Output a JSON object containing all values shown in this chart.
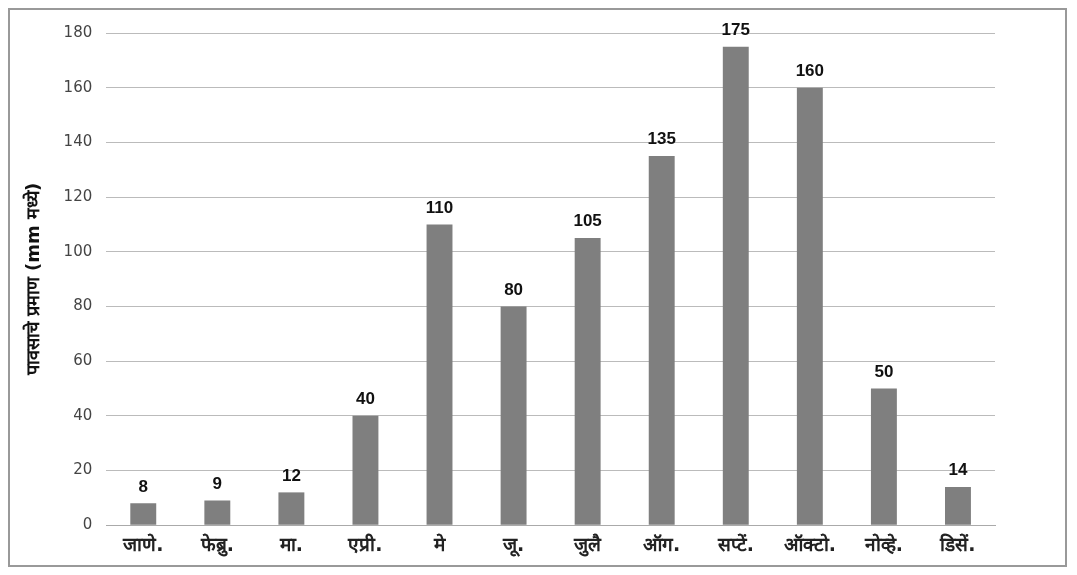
{
  "chart_data": {
    "type": "bar",
    "ylabel": "पावसाचे प्रमाण (mm मध्ये)",
    "categories": [
      "जाणे.",
      "फेब्रु.",
      "मा.",
      "एप्री.",
      "मे",
      "जू.",
      "जुलै",
      "ऑग.",
      "सप्टें.",
      "ऑक्टो.",
      "नोव्हे.",
      "डिसें."
    ],
    "values": [
      8,
      9,
      12,
      40,
      110,
      80,
      105,
      135,
      175,
      160,
      50,
      14
    ],
    "color": "#7f7f7f",
    "ylim": [
      0,
      180
    ],
    "yticks": [
      0,
      20,
      40,
      60,
      80,
      100,
      120,
      140,
      160,
      180
    ],
    "grid": "y",
    "data_labels": true
  }
}
